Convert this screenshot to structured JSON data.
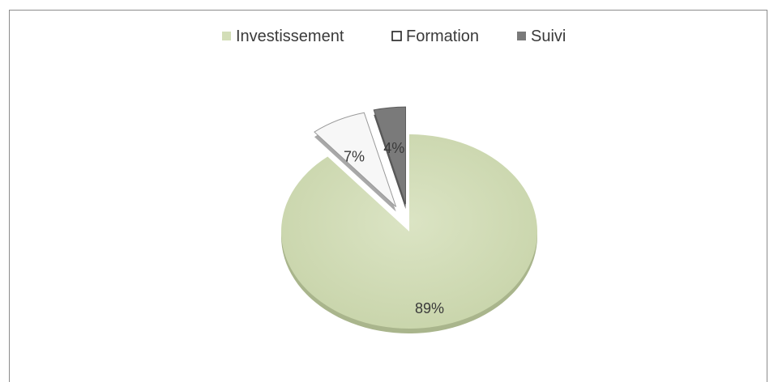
{
  "chart_data": {
    "type": "pie",
    "categories": [
      "Investissement",
      "Formation",
      "Suivi"
    ],
    "values": [
      89,
      7,
      4
    ],
    "labels": [
      "89%",
      "7%",
      "4%"
    ],
    "exploded": true,
    "legend_position": "top",
    "colors": [
      "#d3deb8",
      "#f7f7f7",
      "#7a7a7a"
    ]
  }
}
